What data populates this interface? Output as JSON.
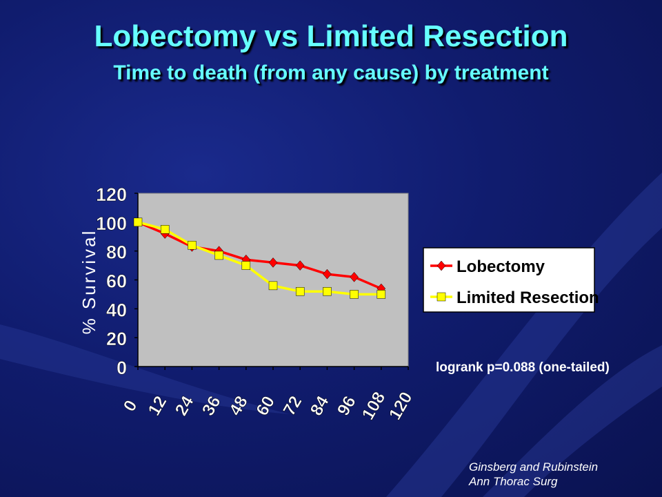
{
  "slide": {
    "title": "Lobectomy vs Limited Resection",
    "subtitle": "Time to death (from any cause) by treatment",
    "stat_note": "logrank p=0.088 (one-tailed)",
    "citation_line1": "Ginsberg and Rubinstein",
    "citation_line2": "Ann Thorac Surg"
  },
  "colors": {
    "background": "#101c6e",
    "title": "#66ffff",
    "plot_area": "#c0c0c0",
    "lobectomy": "#ff0000",
    "limited_resection": "#ffff00"
  },
  "chart_data": {
    "type": "line",
    "title": "",
    "xlabel": "",
    "ylabel": "% Survival",
    "x": [
      0,
      12,
      24,
      36,
      48,
      60,
      72,
      84,
      96,
      108,
      120
    ],
    "xtick_labels": [
      "0",
      "12",
      "24",
      "36",
      "48",
      "60",
      "72",
      "84",
      "96",
      "108",
      "120"
    ],
    "ylim": [
      0,
      120
    ],
    "yticks": [
      0,
      20,
      40,
      60,
      80,
      100,
      120
    ],
    "grid": false,
    "legend_position": "right",
    "series": [
      {
        "name": "Lobectomy",
        "marker": "diamond",
        "x": [
          0,
          12,
          24,
          36,
          48,
          60,
          72,
          84,
          96,
          108
        ],
        "values": [
          100,
          92,
          83,
          80,
          74,
          72,
          70,
          64,
          62,
          54
        ]
      },
      {
        "name": "Limited Resection",
        "marker": "square",
        "x": [
          0,
          12,
          24,
          36,
          48,
          60,
          72,
          84,
          96,
          108
        ],
        "values": [
          100,
          95,
          84,
          77,
          70,
          56,
          52,
          52,
          50,
          50
        ]
      }
    ]
  }
}
